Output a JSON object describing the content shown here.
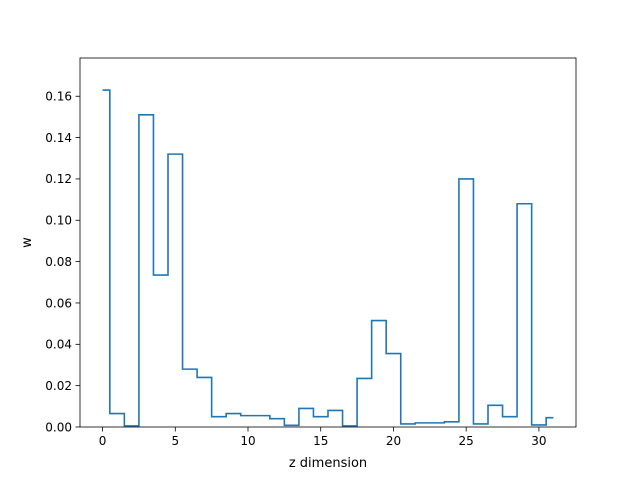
{
  "chart_data": {
    "type": "line",
    "drawstyle": "steps-mid",
    "xlabel": "z dimension",
    "ylabel": "w",
    "xlim": [
      -1.55,
      32.55
    ],
    "ylim": [
      0,
      0.1785
    ],
    "xticks": [
      0,
      5,
      10,
      15,
      20,
      25,
      30
    ],
    "yticks": [
      0.0,
      0.02,
      0.04,
      0.06,
      0.08,
      0.1,
      0.12,
      0.14,
      0.16
    ],
    "ytick_labels": [
      "0.00",
      "0.02",
      "0.04",
      "0.06",
      "0.08",
      "0.10",
      "0.12",
      "0.14",
      "0.16"
    ],
    "xtick_labels": [
      "0",
      "5",
      "10",
      "15",
      "20",
      "25",
      "30"
    ],
    "grid": false,
    "color": "#1f77b4",
    "series": [
      {
        "x": [
          0,
          1,
          2,
          3,
          4,
          5,
          6,
          7,
          8,
          9,
          10,
          11,
          12,
          13,
          14,
          15,
          16,
          17,
          18,
          19,
          20,
          21,
          22,
          23,
          24,
          25,
          26,
          27,
          28,
          29,
          30,
          31
        ],
        "values": [
          0.163,
          0.0065,
          0.0005,
          0.151,
          0.0735,
          0.132,
          0.028,
          0.024,
          0.005,
          0.0065,
          0.0055,
          0.0055,
          0.004,
          0.0008,
          0.009,
          0.005,
          0.008,
          0.0005,
          0.0235,
          0.0515,
          0.0355,
          0.0015,
          0.002,
          0.002,
          0.0025,
          0.12,
          0.0015,
          0.0105,
          0.005,
          0.108,
          0.001,
          0.0045
        ]
      }
    ]
  }
}
